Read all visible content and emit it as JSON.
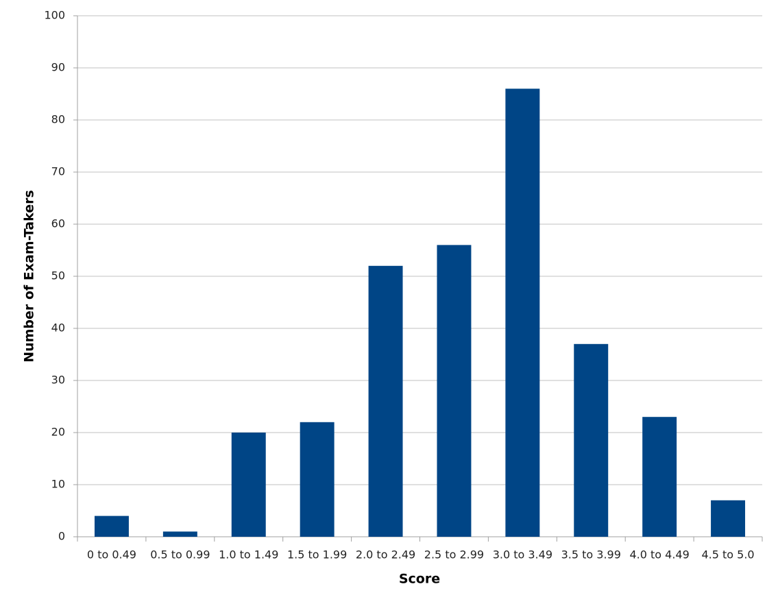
{
  "chart_data": {
    "type": "bar",
    "x_label": "Score",
    "y_label": "Number of Exam-Takers",
    "categories": [
      "0 to 0.49",
      "0.5 to 0.99",
      "1.0 to 1.49",
      "1.5 to 1.99",
      "2.0 to 2.49",
      "2.5 to 2.99",
      "3.0 to 3.49",
      "3.5 to 3.99",
      "4.0 to 4.49",
      "4.5 to 5.0"
    ],
    "values": [
      4,
      1,
      20,
      22,
      52,
      56,
      86,
      37,
      23,
      7
    ],
    "color": "#004586",
    "ylim": [
      0,
      100
    ],
    "yticks": [
      0,
      10,
      20,
      30,
      40,
      50,
      60,
      70,
      80,
      90,
      100
    ],
    "grid": true
  }
}
